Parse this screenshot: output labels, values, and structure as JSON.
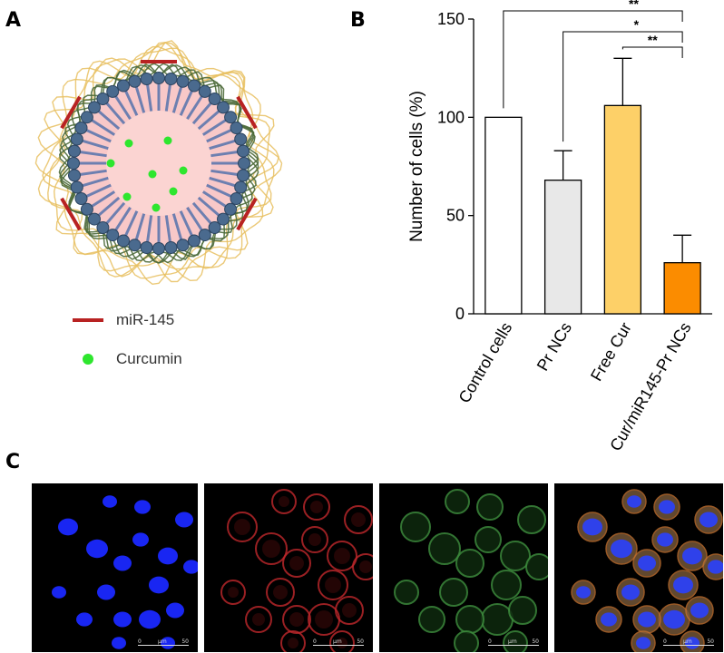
{
  "panels": {
    "a": "A",
    "b": "B",
    "c": "C"
  },
  "legend": [
    {
      "label": "miR-145",
      "color": "#b82222",
      "marker": "line"
    },
    {
      "label": "Curcumin",
      "color": "#2ee62e",
      "marker": "dot"
    }
  ],
  "chart_data": {
    "type": "bar",
    "categories": [
      "Control cells",
      "Pr NCs",
      "Free Cur",
      "Cur/miR145-Pr  NCs"
    ],
    "values": [
      100,
      68,
      106,
      26
    ],
    "error": [
      0,
      15,
      24,
      14
    ],
    "colors": [
      "#ffffff",
      "#e8e8e8",
      "#fdd068",
      "#fb8c00"
    ],
    "ylabel": "Number of cells (%)",
    "xlabel": "",
    "ylim": [
      0,
      150
    ],
    "yticks": [
      0,
      50,
      100,
      150
    ],
    "grid": false,
    "significance": [
      {
        "from": "Control cells",
        "to": "Cur/miR145-Pr  NCs",
        "label": "**"
      },
      {
        "from": "Pr NCs",
        "to": "Cur/miR145-Pr  NCs",
        "label": "*"
      },
      {
        "from": "Free Cur",
        "to": "Cur/miR145-Pr  NCs",
        "label": "**"
      }
    ]
  },
  "micrographs": [
    {
      "channel": "blue",
      "scale": [
        "0",
        "μm",
        "50"
      ]
    },
    {
      "channel": "red",
      "scale": [
        "0",
        "μm",
        "50"
      ]
    },
    {
      "channel": "green",
      "scale": [
        "0",
        "μm",
        "50"
      ]
    },
    {
      "channel": "merged",
      "scale": [
        "0",
        "μm",
        "50"
      ]
    }
  ]
}
